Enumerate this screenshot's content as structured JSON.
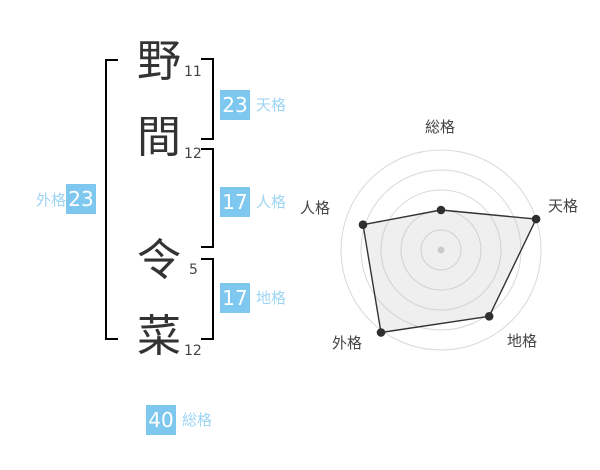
{
  "name_panel": {
    "characters": [
      {
        "char": "野",
        "strokes": "11"
      },
      {
        "char": "間",
        "strokes": "12"
      },
      {
        "char": "令",
        "strokes": "5"
      },
      {
        "char": "菜",
        "strokes": "12"
      }
    ],
    "scores": {
      "tenkaku": {
        "label": "天格",
        "value": "23"
      },
      "jinkaku": {
        "label": "人格",
        "value": "17"
      },
      "chikaku": {
        "label": "地格",
        "value": "17"
      },
      "gaikaku": {
        "label": "外格",
        "value": "23"
      },
      "soukaku": {
        "label": "総格",
        "value": "40"
      }
    }
  },
  "colors": {
    "accent_blue": "#7EC8F0",
    "light_blue": "#9ED5F5",
    "bracket_blue": "#9FD3F2",
    "ink": "#333333"
  },
  "chart_data": {
    "type": "radar",
    "axes": [
      "総格",
      "天格",
      "地格",
      "外格",
      "人格"
    ],
    "values": [
      2,
      5,
      4.1,
      5.1,
      4.1
    ],
    "max": 5,
    "rings": 5,
    "axis_order": "clockwise-from-top",
    "grid": "circular",
    "legend": "none",
    "ring_color": "#d9d9d9",
    "line_color": "#333333",
    "point_color": "#2f2f2f",
    "fill": "rgba(180,180,180,0.22)",
    "center_dot_color": "#c9c9c9"
  }
}
